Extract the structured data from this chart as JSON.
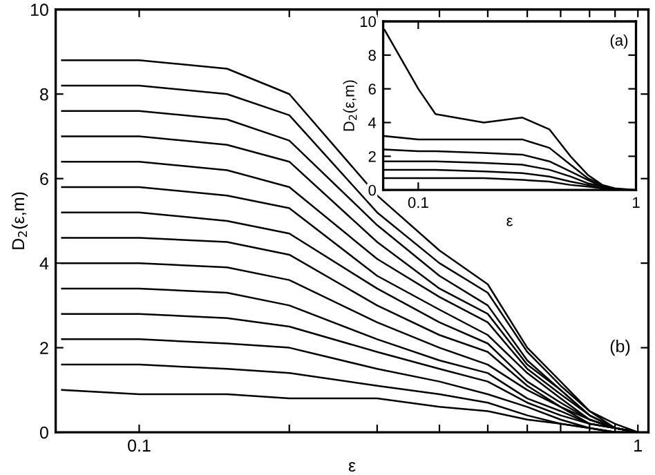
{
  "chart_data": [
    {
      "type": "line",
      "xlabel": "ε",
      "ylabel": "D$_{2}$(ε,m)",
      "log": "x",
      "xlim": [
        0.068,
        1.05
      ],
      "ylim": [
        0,
        10
      ],
      "xticks": [
        {
          "value": 0.1,
          "label": "0.1"
        },
        {
          "value": 0.2,
          "label": null
        },
        {
          "value": 0.3,
          "label": null
        },
        {
          "value": 0.4,
          "label": null
        },
        {
          "value": 0.5,
          "label": null
        },
        {
          "value": 0.6,
          "label": null
        },
        {
          "value": 0.7,
          "label": null
        },
        {
          "value": 0.8,
          "label": null
        },
        {
          "value": 0.9,
          "label": null
        },
        1
      ],
      "yticks": [
        0,
        2,
        4,
        6,
        8,
        10
      ],
      "grid": false,
      "annotations": [
        "(b)"
      ],
      "x": [
        0.07,
        0.1,
        0.15,
        0.2,
        0.3,
        0.4,
        0.5,
        0.6,
        0.7,
        0.8,
        0.9,
        1.0
      ],
      "series": [
        {
          "color": "#000000",
          "values": [
            1.0,
            0.9,
            0.9,
            0.8,
            0.8,
            0.6,
            0.5,
            0.3,
            0.2,
            0.1,
            0.0,
            0.0
          ]
        },
        {
          "color": "#000000",
          "values": [
            1.6,
            1.6,
            1.5,
            1.4,
            1.1,
            0.9,
            0.7,
            0.4,
            0.2,
            0.1,
            0.0,
            0.0
          ]
        },
        {
          "color": "#000000",
          "values": [
            2.2,
            2.2,
            2.1,
            2.0,
            1.5,
            1.2,
            0.9,
            0.6,
            0.3,
            0.1,
            0.0,
            0.0
          ]
        },
        {
          "color": "#000000",
          "values": [
            2.8,
            2.8,
            2.7,
            2.5,
            1.9,
            1.5,
            1.2,
            0.7,
            0.4,
            0.2,
            0.1,
            0.0
          ]
        },
        {
          "color": "#000000",
          "values": [
            3.4,
            3.4,
            3.3,
            3.0,
            2.2,
            1.7,
            1.4,
            0.8,
            0.5,
            0.2,
            0.1,
            0.0
          ]
        },
        {
          "color": "#000000",
          "values": [
            4.0,
            4.0,
            3.9,
            3.6,
            2.6,
            2.0,
            1.6,
            1.0,
            0.6,
            0.2,
            0.1,
            0.0
          ]
        },
        {
          "color": "#000000",
          "values": [
            4.6,
            4.6,
            4.5,
            4.2,
            3.0,
            2.3,
            1.9,
            1.1,
            0.6,
            0.3,
            0.1,
            0.0
          ]
        },
        {
          "color": "#000000",
          "values": [
            5.2,
            5.2,
            5.0,
            4.7,
            3.4,
            2.6,
            2.1,
            1.2,
            0.7,
            0.3,
            0.1,
            0.0
          ]
        },
        {
          "color": "#000000",
          "values": [
            5.8,
            5.8,
            5.6,
            5.3,
            3.7,
            2.9,
            2.3,
            1.4,
            0.8,
            0.3,
            0.1,
            0.0
          ]
        },
        {
          "color": "#000000",
          "values": [
            6.4,
            6.4,
            6.2,
            5.8,
            4.1,
            3.2,
            2.6,
            1.5,
            0.9,
            0.4,
            0.1,
            0.0
          ]
        },
        {
          "color": "#000000",
          "values": [
            7.0,
            7.0,
            6.8,
            6.4,
            4.5,
            3.4,
            2.8,
            1.6,
            1.0,
            0.4,
            0.1,
            0.0
          ]
        },
        {
          "color": "#000000",
          "values": [
            7.6,
            7.6,
            7.4,
            6.9,
            4.9,
            3.7,
            3.0,
            1.7,
            1.0,
            0.4,
            0.1,
            0.0
          ]
        },
        {
          "color": "#000000",
          "values": [
            8.2,
            8.2,
            8.0,
            7.5,
            5.2,
            4.0,
            3.3,
            1.9,
            1.1,
            0.5,
            0.1,
            0.0
          ]
        },
        {
          "color": "#000000",
          "values": [
            8.8,
            8.8,
            8.6,
            8.0,
            5.6,
            4.3,
            3.5,
            2.0,
            1.2,
            0.5,
            0.2,
            0.0
          ]
        }
      ]
    },
    {
      "type": "line",
      "xlabel": "ε",
      "ylabel": "D$_{2}$(ε,m)",
      "log": "x",
      "xlim": [
        0.069,
        1
      ],
      "ylim": [
        0,
        10
      ],
      "xticks": [
        {
          "value": 0.1,
          "label": "0.1"
        },
        1
      ],
      "yticks": [
        0,
        2,
        4,
        6,
        8,
        10
      ],
      "grid": false,
      "annotations": [
        "(a)"
      ],
      "x": [
        0.07,
        0.1,
        0.12,
        0.2,
        0.3,
        0.4,
        0.5,
        0.6,
        0.7,
        0.8,
        1.0
      ],
      "series": [
        {
          "color": "#000000",
          "values": [
            0.7,
            0.7,
            0.7,
            0.7,
            0.6,
            0.5,
            0.3,
            0.2,
            0.1,
            0.0,
            0.0
          ]
        },
        {
          "color": "#000000",
          "values": [
            1.2,
            1.2,
            1.2,
            1.1,
            1.0,
            0.8,
            0.5,
            0.3,
            0.1,
            0.0,
            0.0
          ]
        },
        {
          "color": "#000000",
          "values": [
            1.7,
            1.7,
            1.7,
            1.6,
            1.5,
            1.2,
            0.8,
            0.4,
            0.2,
            0.0,
            0.0
          ]
        },
        {
          "color": "#000000",
          "values": [
            2.4,
            2.3,
            2.3,
            2.2,
            2.1,
            1.7,
            1.1,
            0.6,
            0.2,
            0.0,
            0.0
          ]
        },
        {
          "color": "#000000",
          "values": [
            3.2,
            3.0,
            3.0,
            3.0,
            3.0,
            2.5,
            1.5,
            0.7,
            0.3,
            0.0,
            0.0
          ]
        },
        {
          "color": "#000000",
          "values": [
            9.5,
            6.0,
            4.5,
            4.0,
            4.3,
            3.6,
            2.0,
            0.9,
            0.3,
            0.1,
            0.0
          ]
        }
      ]
    }
  ]
}
